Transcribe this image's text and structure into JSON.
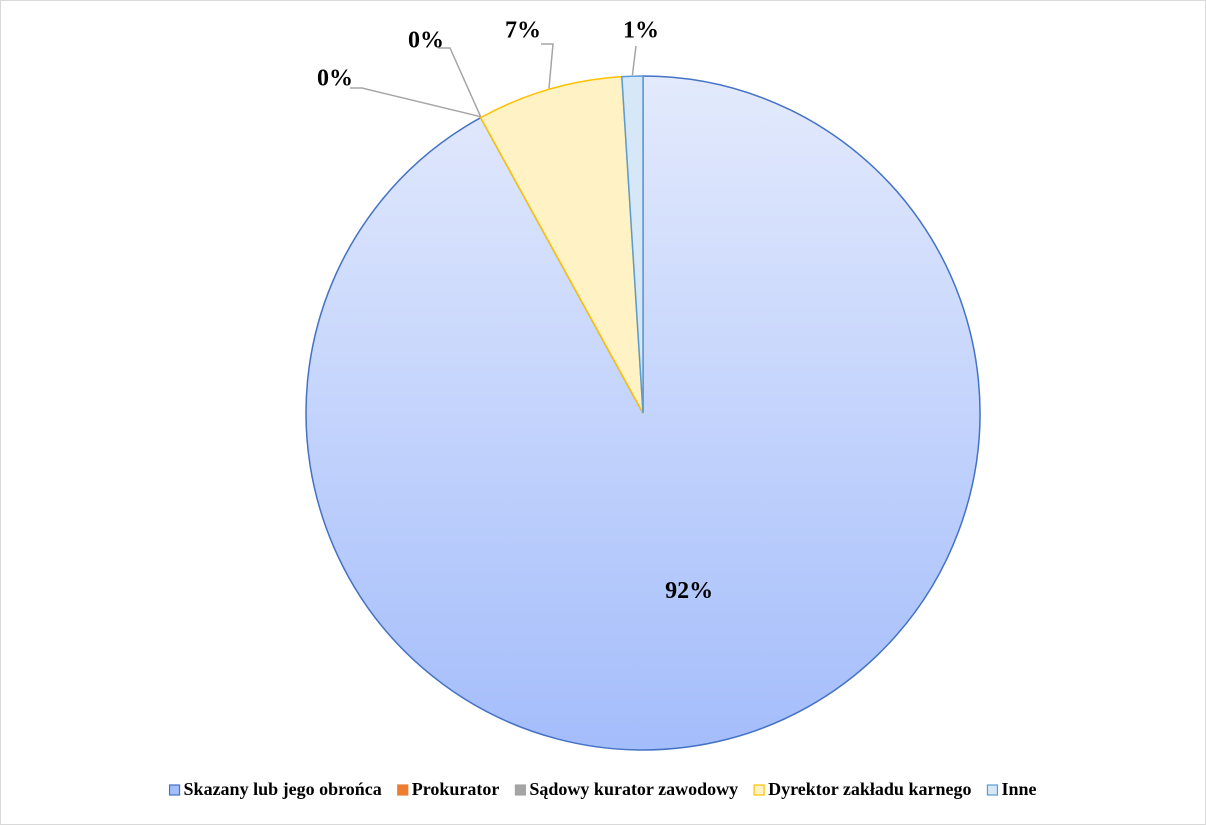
{
  "chart_data": {
    "type": "pie",
    "categories": [
      "Skazany lub jego obrońca",
      "Prokurator",
      "Sądowy kurator zawodowy",
      "Dyrektor zakładu karnego",
      "Inne"
    ],
    "values": [
      92,
      0,
      0,
      7,
      1
    ],
    "value_labels": [
      "92%",
      "0%",
      "0%",
      "7%",
      "1%"
    ],
    "colors": [
      "#a4bdfb",
      "#ed7d31",
      "#a5a5a5",
      "#fff2c4",
      "#d6e8f8"
    ],
    "legend": "bottom"
  }
}
